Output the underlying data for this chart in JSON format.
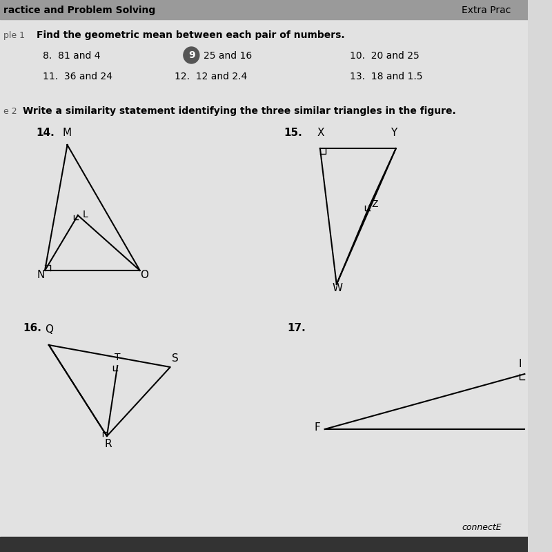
{
  "bg_color": "#d8d8d8",
  "page_bg": "#e2e2e2",
  "header_bar_color": "#9a9a9a",
  "header_text": "ractice and Problem Solving",
  "extra_prac_text": "Extra Prac",
  "section1_label": "ple 1",
  "section1_instruction": "Find the geometric mean between each pair of numbers.",
  "prob8": "8.  81 and 4",
  "prob9": "25 and 16",
  "prob10": "10.  20 and 25",
  "prob11": "11.  36 and 24",
  "prob12": "12.  12 and 2.4",
  "prob13": "13.  18 and 1.5",
  "section2_label": "e 2",
  "section2_instruction": "Write a similarity statement identifying the three similar triangles in the figure.",
  "fig14_label": "14.",
  "fig14_M": "M",
  "fig14_L": "L",
  "fig14_N": "N",
  "fig14_O": "O",
  "fig15_label": "15.",
  "fig15_X": "X",
  "fig15_Y": "Y",
  "fig15_Z": "Z",
  "fig15_W": "W",
  "fig16_label": "16.",
  "fig16_Q": "Q",
  "fig16_T": "T",
  "fig16_S": "S",
  "fig16_R": "R",
  "fig17_label": "17.",
  "fig17_F": "F",
  "fig17_I": "I",
  "connect_text": "connectE",
  "circle9_color": "#555555"
}
